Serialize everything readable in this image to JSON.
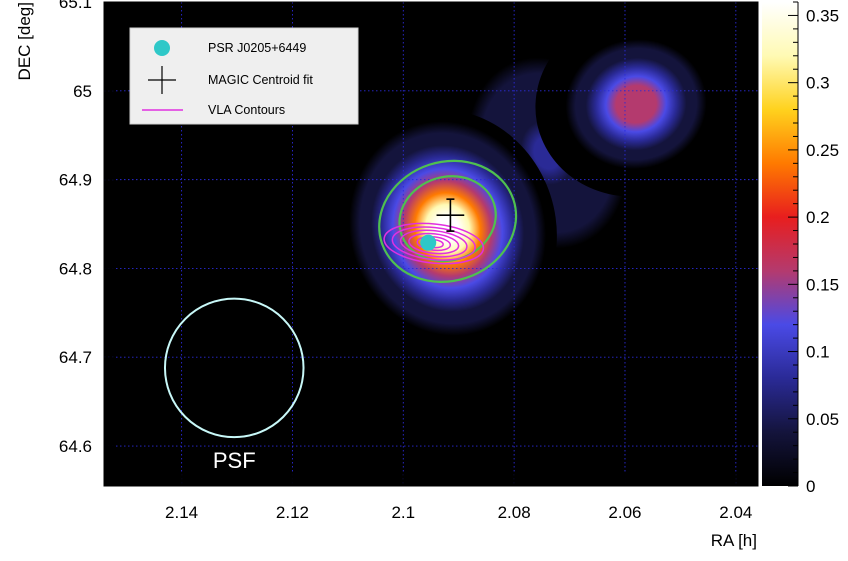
{
  "chart_data": {
    "type": "heatmap",
    "title": "",
    "xlabel": "RA [h]",
    "ylabel": "DEC [deg]",
    "xlim": [
      2.154,
      2.036
    ],
    "ylim": [
      64.555,
      65.1
    ],
    "x_axis_reversed": true,
    "x_ticks": [
      2.14,
      2.12,
      2.1,
      2.08,
      2.06,
      2.04
    ],
    "x_tick_labels": [
      "2.14",
      "2.12",
      "2.1",
      "2.08",
      "2.06",
      "2.04"
    ],
    "y_ticks": [
      64.6,
      64.7,
      64.8,
      64.9,
      65.0,
      65.1
    ],
    "y_tick_labels": [
      "64.6",
      "64.7",
      "64.8",
      "64.9",
      "65",
      "65.1"
    ],
    "grid": true,
    "colorbar": {
      "range": [
        0,
        0.36
      ],
      "ticks": [
        0,
        0.05,
        0.1,
        0.15,
        0.2,
        0.25,
        0.3,
        0.35
      ],
      "tick_labels": [
        "0",
        "0.05",
        "0.1",
        "0.15",
        "0.2",
        "0.25",
        "0.3",
        "0.35"
      ],
      "palette": [
        "#000000",
        "#14143c",
        "#2a2a96",
        "#4a4ae6",
        "#b43a6e",
        "#e81e1e",
        "#ff7a00",
        "#ffd21e",
        "#fffab4",
        "#ffffff"
      ]
    },
    "sources": [
      {
        "x": 2.092,
        "y": 64.845,
        "peak": 0.36,
        "sx": 0.0075,
        "sy": 0.052,
        "rotate": -18
      },
      {
        "x": 2.058,
        "y": 64.985,
        "peak": 0.17,
        "sx": 0.007,
        "sy": 0.04,
        "rotate": -10
      },
      {
        "x": 2.074,
        "y": 64.93,
        "peak": 0.07,
        "sx": 0.009,
        "sy": 0.07,
        "rotate": -18
      }
    ],
    "markers": {
      "pulsar": {
        "label": "PSR J0205+6449",
        "x": 2.0955,
        "y": 64.829,
        "color": "#2ec8c8"
      },
      "centroid": {
        "label": "MAGIC Centroid fit",
        "x": 2.0915,
        "y": 64.86,
        "x_err": 0.0025,
        "y_err": 0.018,
        "color": "#000000"
      }
    },
    "legend": {
      "placement": "top-left",
      "entries": [
        "PSR J0205+6449",
        "MAGIC Centroid fit",
        "VLA Contours"
      ]
    },
    "green_contours": [
      {
        "x": 2.092,
        "y": 64.853,
        "rx": 0.0125,
        "ry": 0.067,
        "rotate": -18
      },
      {
        "x": 2.092,
        "y": 64.856,
        "rx": 0.0088,
        "ry": 0.047,
        "rotate": -18
      }
    ],
    "vla_contours": {
      "color": "#e030e0",
      "center": [
        2.0945,
        64.828
      ],
      "levels": [
        {
          "rx": 0.009,
          "ry": 0.022
        },
        {
          "rx": 0.0075,
          "ry": 0.018
        },
        {
          "rx": 0.006,
          "ry": 0.0145
        },
        {
          "rx": 0.0045,
          "ry": 0.011
        },
        {
          "rx": 0.003,
          "ry": 0.0075
        },
        {
          "rx": 0.0017,
          "ry": 0.0045
        }
      ]
    },
    "psf": {
      "label": "PSF",
      "x": 2.1305,
      "y": 64.688,
      "r_deg": 0.078,
      "color": "#c8f8f8"
    }
  }
}
